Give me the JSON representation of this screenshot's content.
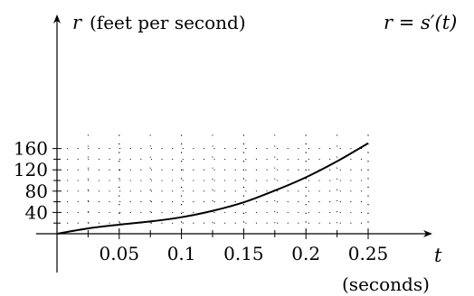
{
  "chart_data": {
    "type": "line",
    "ylabel_var": "r",
    "ylabel_units": "(feet per second)",
    "xlabel_var": "t",
    "xlabel_units": "(seconds)",
    "annotation": "r = s′(t)",
    "xlim": [
      0,
      0.29
    ],
    "ylim": [
      0,
      185
    ],
    "x_ticks": [
      0.05,
      0.1,
      0.15,
      0.2,
      0.25
    ],
    "x_tick_labels": [
      "0.05",
      "0.1",
      "0.15",
      "0.2",
      "0.25"
    ],
    "x_minor_ticks": [
      0.025,
      0.075,
      0.125,
      0.175,
      0.225
    ],
    "y_ticks": [
      40,
      80,
      120,
      160
    ],
    "y_tick_labels": [
      "40",
      "80",
      "120",
      "160"
    ],
    "y_minor_ticks": [
      20,
      60,
      100,
      140
    ],
    "grid": true,
    "series": [
      {
        "x": [
          0,
          0.025,
          0.05,
          0.075,
          0.1,
          0.125,
          0.15,
          0.175,
          0.2,
          0.225,
          0.25
        ],
        "y": [
          0,
          10,
          17,
          23,
          31,
          43,
          59,
          81,
          106,
          136,
          170
        ]
      }
    ]
  }
}
